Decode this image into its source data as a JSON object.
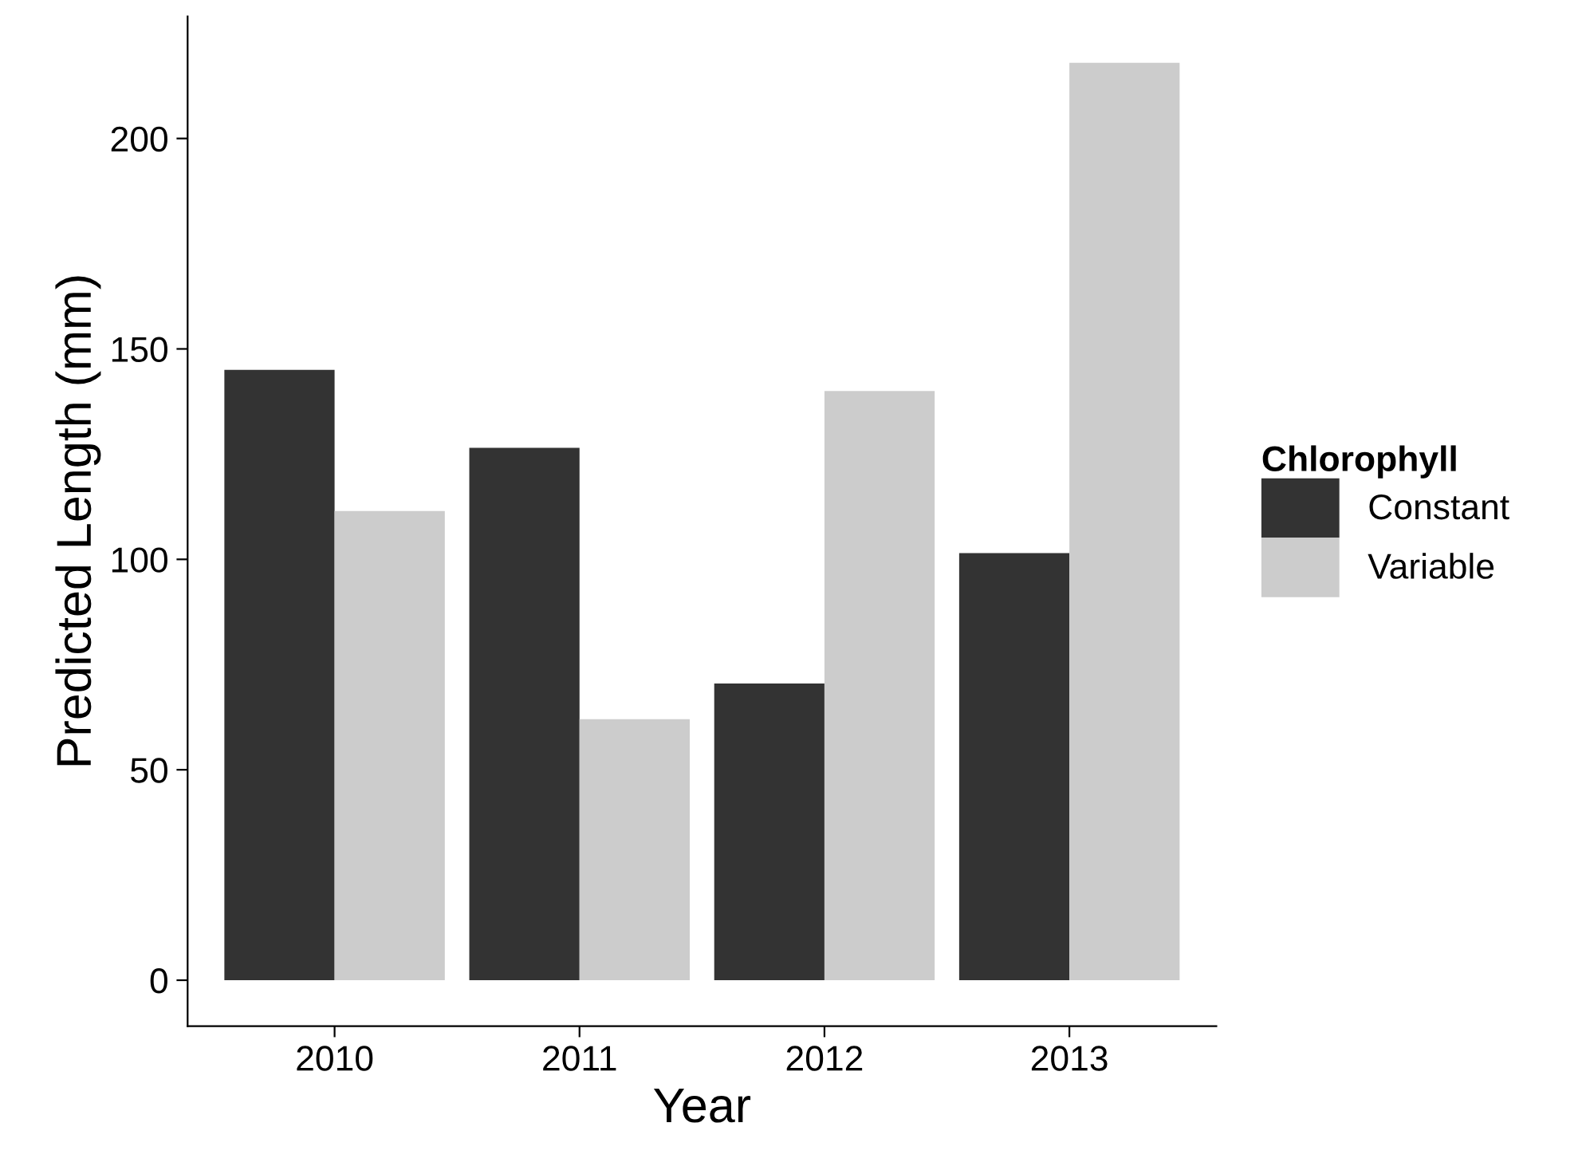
{
  "chart_data": {
    "type": "bar",
    "xlabel": "Year",
    "ylabel": "Predicted Length (mm)",
    "legend_title": "Chlorophyll",
    "categories": [
      "2010",
      "2011",
      "2012",
      "2013"
    ],
    "series": [
      {
        "name": "Constant",
        "color": "#333333",
        "values": [
          145,
          126.5,
          70.5,
          101.5
        ]
      },
      {
        "name": "Variable",
        "color": "#cccccc",
        "values": [
          111.5,
          62,
          140,
          218
        ]
      }
    ],
    "ylim": [
      -10.9,
      229
    ],
    "yticks": [
      0,
      50,
      100,
      150,
      200
    ],
    "grid": false,
    "legend": "right"
  }
}
